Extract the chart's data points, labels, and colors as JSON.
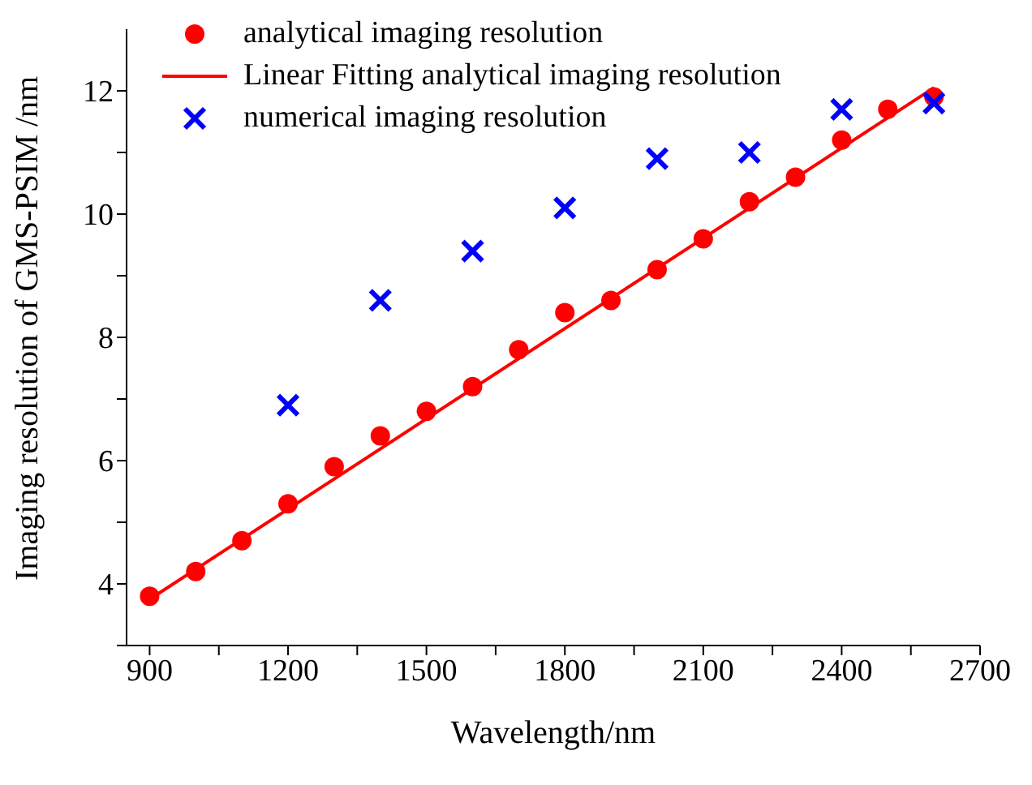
{
  "chart_data": {
    "type": "scatter",
    "xlabel": "Wavelength/nm",
    "ylabel": "Imaging resolution of GMS-PSIM /nm",
    "xlim": [
      850,
      2700
    ],
    "ylim": [
      3,
      13
    ],
    "xticks": [
      900,
      {
        "value": 1050,
        "label": null
      },
      1200,
      {
        "value": 1350,
        "label": null
      },
      1500,
      {
        "value": 1650,
        "label": null
      },
      1800,
      {
        "value": 1950,
        "label": null
      },
      2100,
      {
        "value": 2250,
        "label": null
      },
      2400,
      {
        "value": 2550,
        "label": null
      },
      2700
    ],
    "yticks": [
      {
        "value": 3,
        "label": null
      },
      4,
      {
        "value": 5,
        "label": null
      },
      6,
      {
        "value": 7,
        "label": null
      },
      8,
      {
        "value": 9,
        "label": null
      },
      10,
      {
        "value": 11,
        "label": null
      },
      12
    ],
    "grid": false,
    "legend": "top left",
    "series": [
      {
        "name": "analytical imaging resolution",
        "marker": "circle",
        "color": "#ff0000",
        "x": [
          900,
          1000,
          1100,
          1200,
          1300,
          1400,
          1500,
          1600,
          1700,
          1800,
          1900,
          2000,
          2100,
          2200,
          2300,
          2400,
          2500,
          2600
        ],
        "values": [
          3.8,
          4.2,
          4.7,
          5.3,
          5.9,
          6.4,
          6.8,
          7.2,
          7.8,
          8.4,
          8.6,
          9.1,
          9.6,
          10.2,
          10.6,
          11.2,
          11.7,
          11.9
        ]
      },
      {
        "name": "Linear Fitting analytical imaging resolution",
        "type": "line",
        "marker": "none",
        "color": "#ff0000",
        "x": [
          900,
          2600
        ],
        "values": [
          3.75,
          12.05
        ]
      },
      {
        "name": "numerical imaging resolution",
        "marker": "cross",
        "color": "#0000ff",
        "x": [
          1200,
          1400,
          1600,
          1800,
          2000,
          2200,
          2400,
          2600
        ],
        "values": [
          6.9,
          8.6,
          9.4,
          10.1,
          10.9,
          11.0,
          11.7,
          11.8
        ]
      }
    ]
  }
}
